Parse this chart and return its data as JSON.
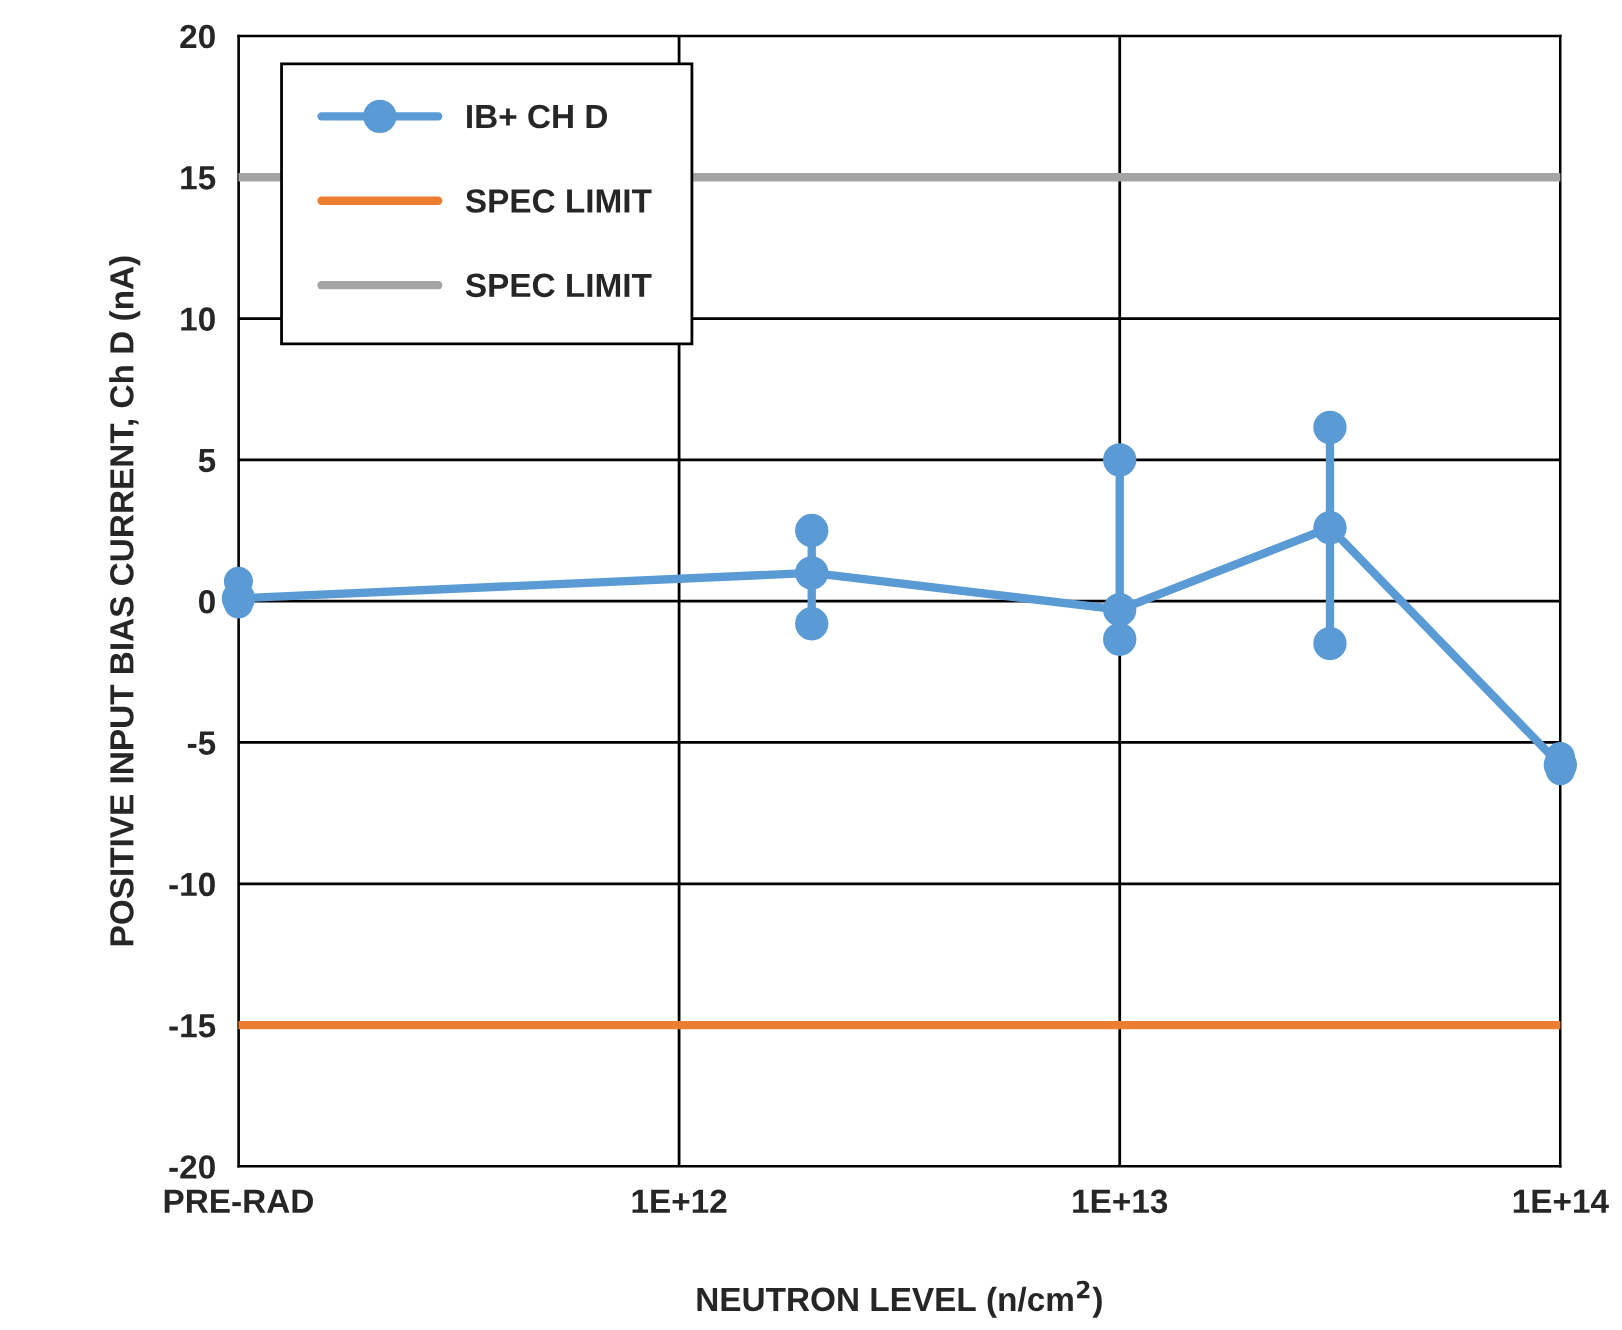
{
  "chart_data": {
    "type": "line",
    "xlabel": "NEUTRON LEVEL (n/cm$^{2}$)",
    "ylabel": "POSITIVE INPUT BIAS CURRENT, Ch D (nA)",
    "x": [
      100000000000.0,
      2000000000000.0,
      10000000000000.0,
      30000000000000.0,
      100000000000000.0
    ],
    "series": [
      {
        "type": "scatter",
        "color": "#5b9bd5",
        "x": [
          100000000000.0,
          100000000000.0
        ],
        "values": [
          -0.1,
          0.7
        ]
      },
      {
        "color": "#5b9bd5",
        "x": [
          2000000000000.0,
          2000000000000.0
        ],
        "values": [
          -0.8,
          2.5
        ]
      },
      {
        "color": "#5b9bd5",
        "x": [
          10000000000000.0,
          10000000000000.0
        ],
        "values": [
          -1.35,
          5.0
        ]
      },
      {
        "color": "#5b9bd5",
        "x": [
          30000000000000.0,
          30000000000000.0
        ],
        "values": [
          -1.5,
          6.15
        ]
      },
      {
        "type": "scatter",
        "color": "#5b9bd5",
        "x": [
          100000000000000.0,
          100000000000000.0
        ],
        "values": [
          -6.0,
          -5.5
        ]
      },
      {
        "name": "IB+ CH D",
        "color": "#5b9bd5",
        "values": [
          0.1,
          1.0,
          -0.3,
          2.6,
          -5.8
        ]
      }
    ],
    "ref_lines": [
      {
        "axis": "y",
        "value": -15,
        "label": "SPEC LIMIT",
        "color": "#ed7d31"
      },
      {
        "axis": "y",
        "value": 15,
        "label": "SPEC LIMIT",
        "color": "#a5a5a5"
      }
    ],
    "log": "x",
    "xlim": [
      100000000000.0,
      100000000000000.0
    ],
    "xticks": [
      {
        "value": 100000000000.0,
        "label": "PRE-RAD"
      },
      {
        "value": 1000000000000.0,
        "label": "1E+12"
      },
      {
        "value": 10000000000000.0,
        "label": "1E+13"
      },
      {
        "value": 100000000000000.0,
        "label": "1E+14"
      }
    ],
    "ylim": [
      -20,
      20
    ],
    "yticks": [
      -20,
      -15,
      -10,
      -5,
      0,
      5,
      10,
      15,
      20
    ],
    "grid": true,
    "legend": "top left",
    "marker": "circle",
    "line_style": "solid"
  }
}
